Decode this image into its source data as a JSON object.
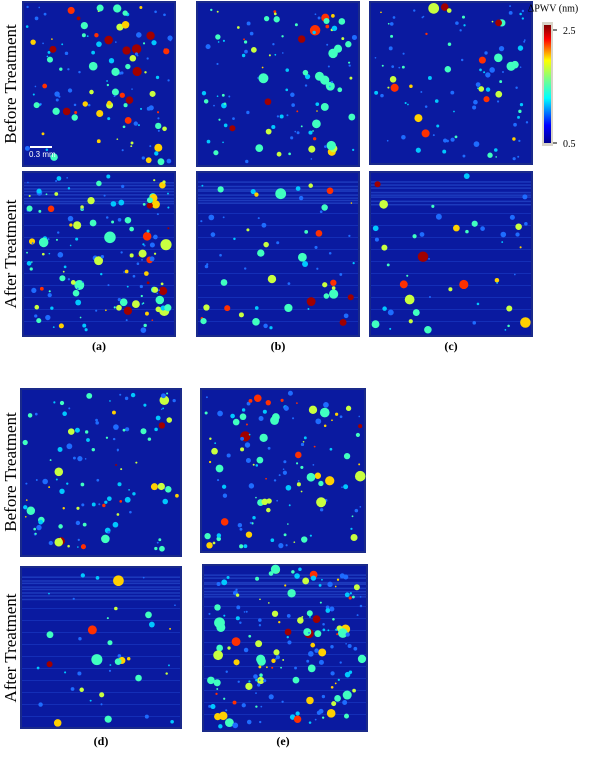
{
  "figure": {
    "colorbar": {
      "title": "ΔPWV (nm)",
      "lim": [
        0.5,
        2.5
      ],
      "ticks": [
        2.5,
        0.5
      ]
    },
    "scale_bar": "0.3 mm",
    "groups": [
      {
        "row_labels": [
          "Before Treatment",
          "After Treatment"
        ],
        "panel_labels": [
          "(a)",
          "(b)",
          "(c)"
        ]
      },
      {
        "row_labels": [
          "Before Treatment",
          "After Treatment"
        ],
        "panel_labels": [
          "(d)",
          "(e)"
        ]
      }
    ]
  }
}
